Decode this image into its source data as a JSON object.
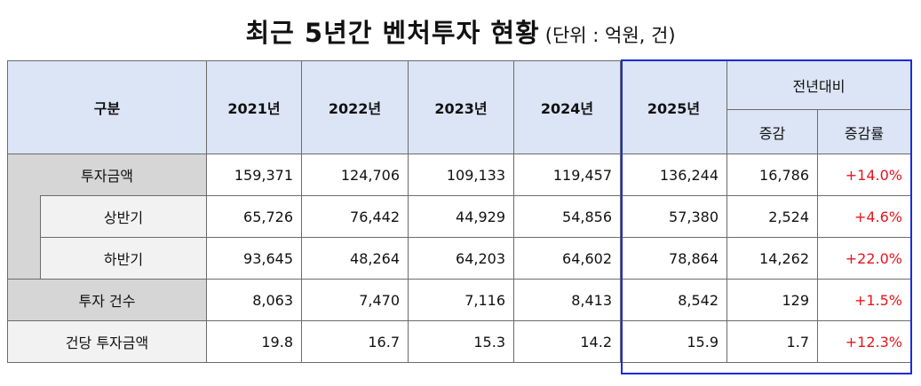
{
  "title": {
    "main": "최근 5년간 벤처투자 현황",
    "unit": "(단위 : 억원, 건)"
  },
  "header": {
    "category": "구분",
    "years": [
      "2021년",
      "2022년",
      "2023년",
      "2024년",
      "2025년"
    ],
    "yoy_group": "전년대비",
    "yoy_change": "증감",
    "yoy_rate": "증감률"
  },
  "rows": [
    {
      "label": "투자금액",
      "values": [
        "159,371",
        "124,706",
        "109,133",
        "119,457",
        "136,244"
      ],
      "change": "16,786",
      "rate": "+14.0%"
    },
    {
      "label": "상반기",
      "values": [
        "65,726",
        "76,442",
        "44,929",
        "54,856",
        "57,380"
      ],
      "change": "2,524",
      "rate": "+4.6%"
    },
    {
      "label": "하반기",
      "values": [
        "93,645",
        "48,264",
        "64,203",
        "64,602",
        "78,864"
      ],
      "change": "14,262",
      "rate": "+22.0%"
    },
    {
      "label": "투자 건수",
      "values": [
        "8,063",
        "7,470",
        "7,116",
        "8,413",
        "8,542"
      ],
      "change": "129",
      "rate": "+1.5%"
    },
    {
      "label": "건당 투자금액",
      "values": [
        "19.8",
        "16.7",
        "15.3",
        "14.2",
        "15.9"
      ],
      "change": "1.7",
      "rate": "+12.3%"
    }
  ],
  "colors": {
    "header_bg": "#dbe5f5",
    "label_bg": "#d6d6d6",
    "sub_label_bg": "#f2f2f2",
    "positive_rate": "#e8141c",
    "highlight_border": "#1a2be0"
  }
}
